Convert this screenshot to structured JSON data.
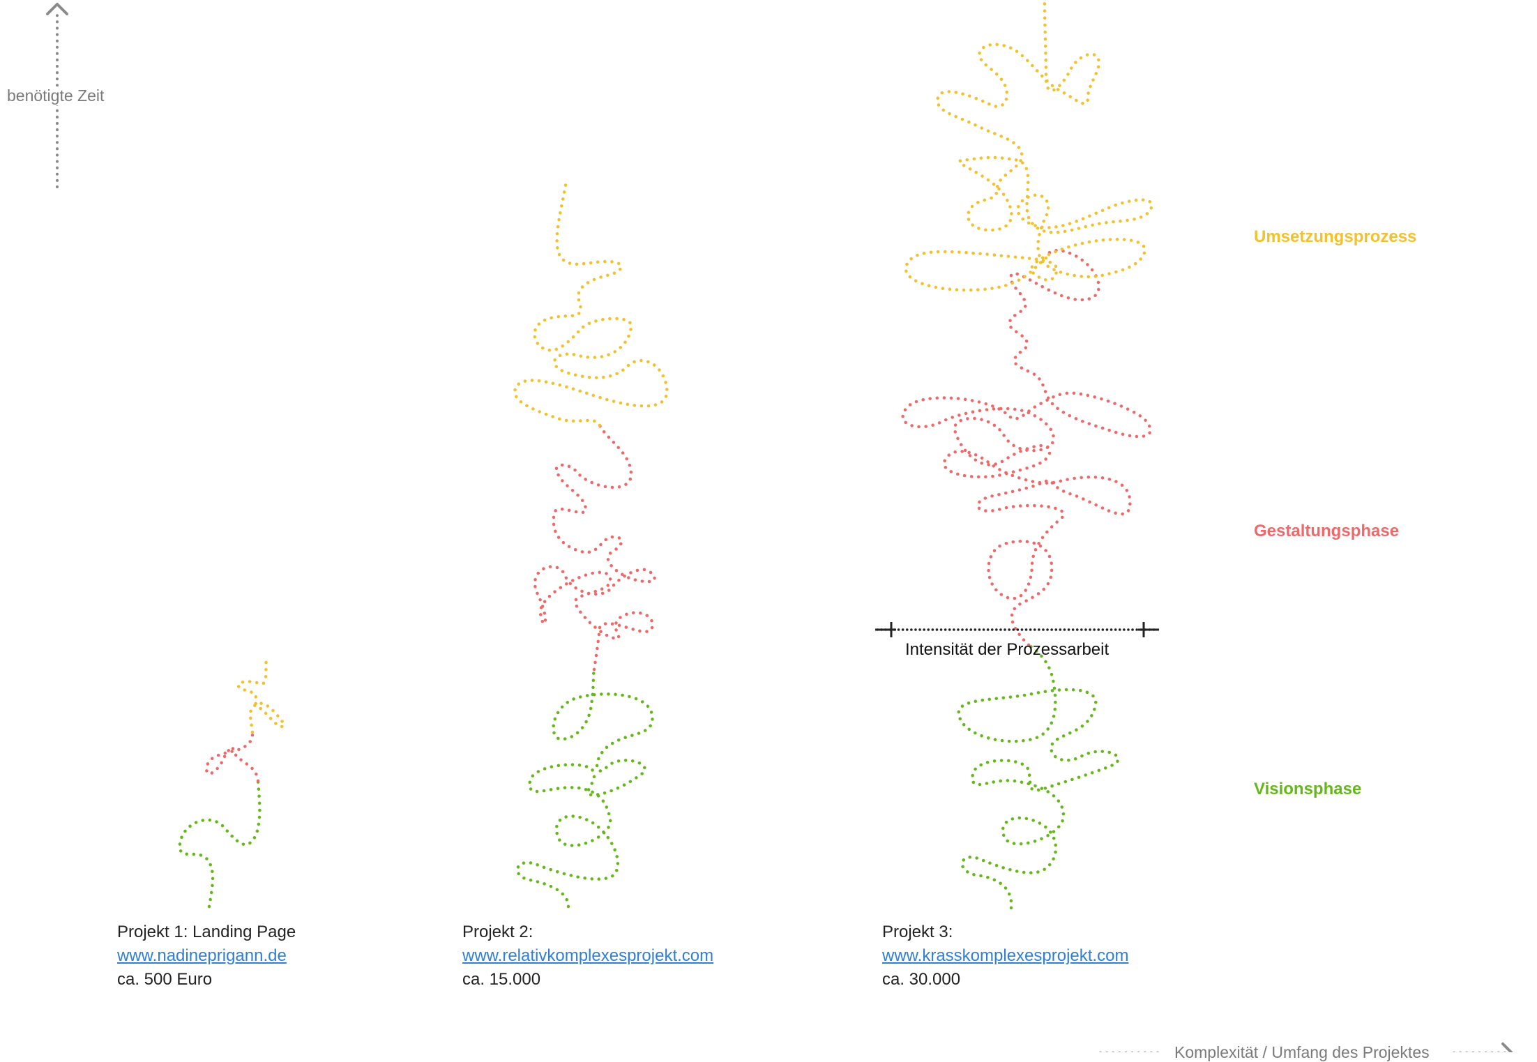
{
  "axes": {
    "time_label": "benötigte Zeit",
    "complexity_label": "Komplexität / Umfang des Projektes"
  },
  "phases": {
    "umsetzung": {
      "label": "Umsetzungsprozess",
      "color": "#f2c12e"
    },
    "gestaltung": {
      "label": "Gestaltungsphase",
      "color": "#ee6a6a"
    },
    "vision": {
      "label": "Visionsphase",
      "color": "#66b81a"
    }
  },
  "intensity_label": "Intensität der Prozessarbeit",
  "projects": [
    {
      "title": "Projekt 1: Landing Page",
      "url": "www.nadineprigann.de",
      "price": "ca. 500 Euro"
    },
    {
      "title": "Projekt 2:",
      "url": "www.relativkomplexesprojekt.com",
      "price": "ca. 15.000"
    },
    {
      "title": "Projekt 3:",
      "url": "www.krasskomplexesprojekt.com",
      "price": "ca. 30.000"
    }
  ],
  "colors": {
    "axis": "#8a8a8a",
    "link": "#2f7fd8"
  }
}
